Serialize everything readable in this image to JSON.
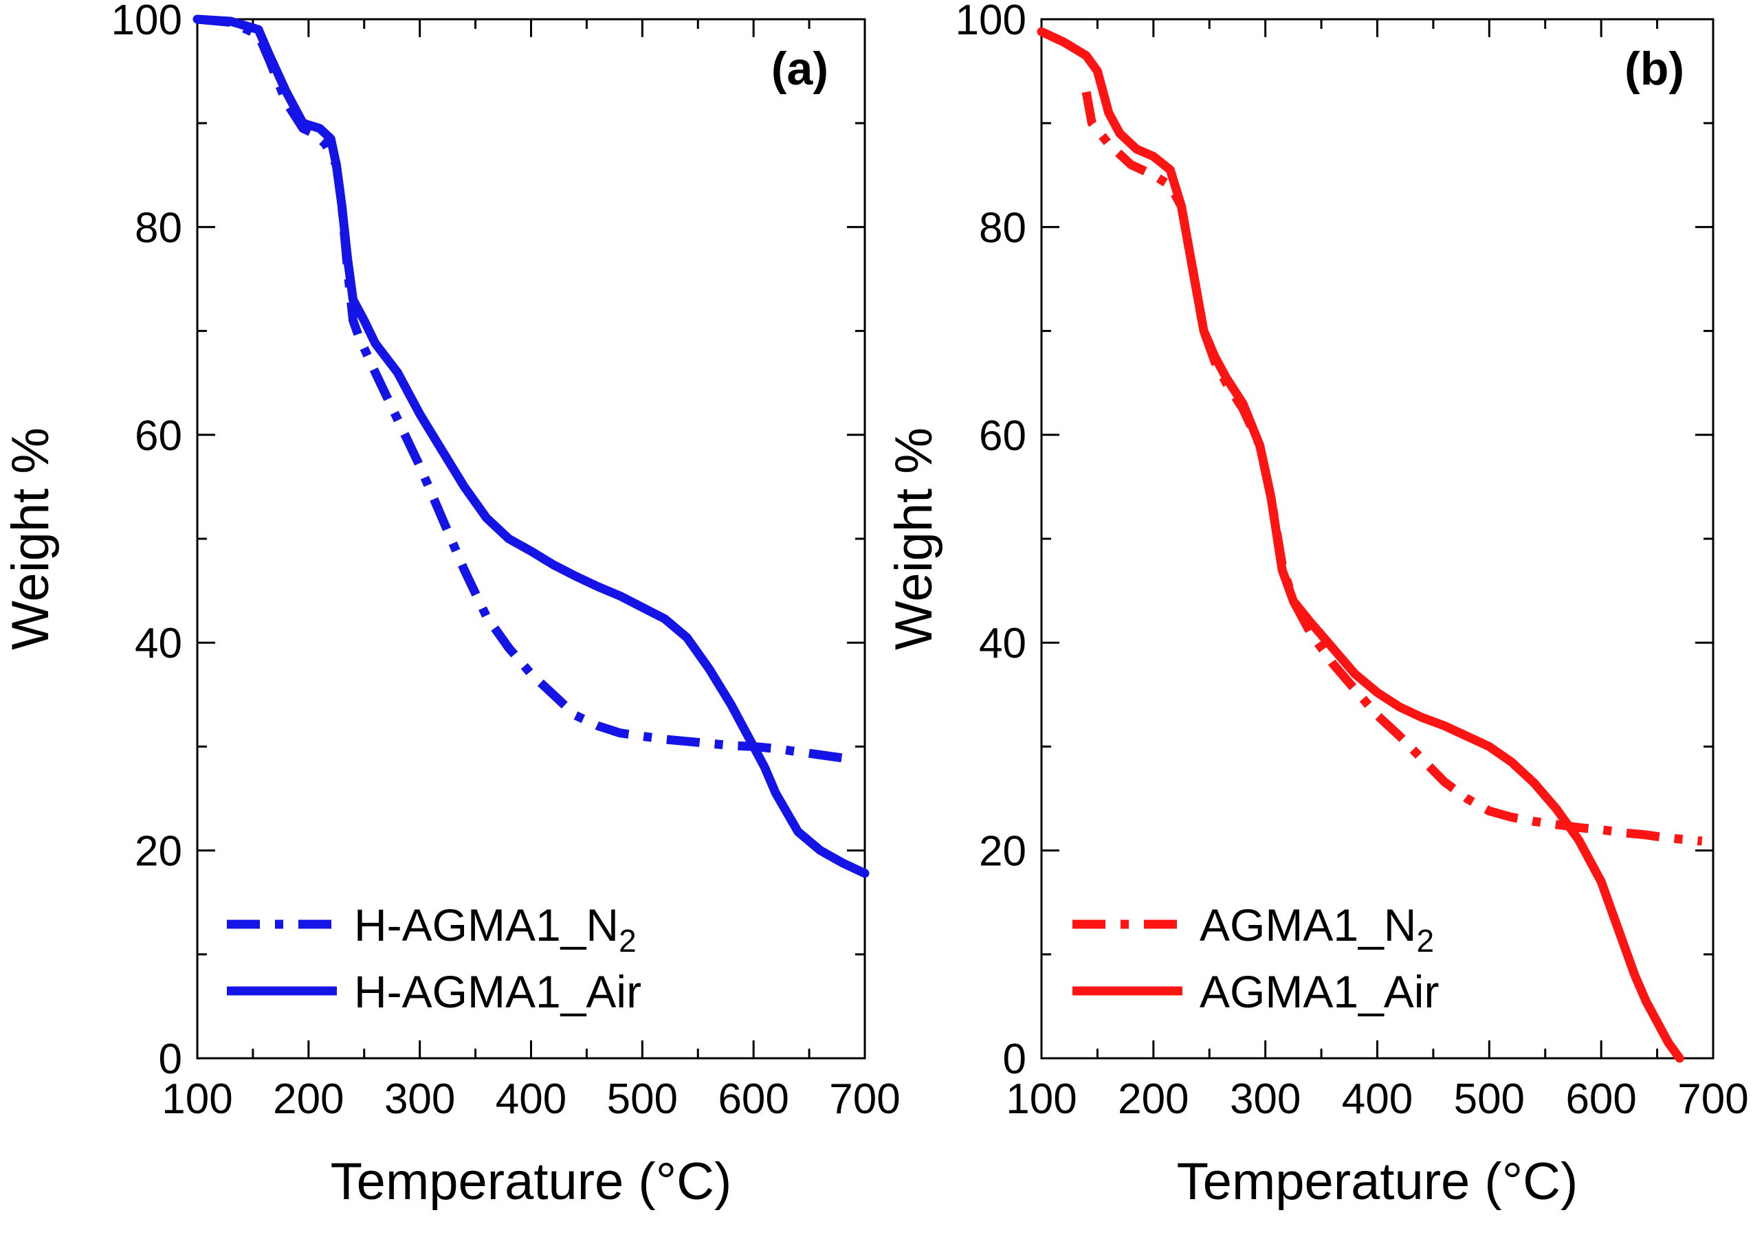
{
  "chart_data": [
    {
      "type": "line",
      "panel_label": "(a)",
      "xlabel": "Temperature (°C)",
      "ylabel": "Weight %",
      "xlim": [
        100,
        700
      ],
      "ylim": [
        0,
        100
      ],
      "xticks": [
        "100",
        "200",
        "300",
        "400",
        "500",
        "600",
        "700"
      ],
      "yticks": [
        "0",
        "20",
        "40",
        "60",
        "80",
        "100"
      ],
      "color": "#1414e6",
      "legend": {
        "location": "bottom-left"
      },
      "series": [
        {
          "name": "H-AGMA1_N",
          "subscript": "2",
          "style": "dashdot",
          "x": [
            100,
            130,
            155,
            165,
            180,
            195,
            205,
            215,
            225,
            230,
            235,
            240,
            245,
            260,
            280,
            300,
            320,
            340,
            360,
            380,
            400,
            420,
            440,
            460,
            480,
            500,
            520,
            540,
            560,
            580,
            600,
            620,
            640,
            660,
            680,
            690
          ],
          "y": [
            100,
            99.7,
            98.5,
            96,
            92,
            89.5,
            89,
            88,
            86,
            82,
            76,
            71,
            69.5,
            66,
            61.5,
            57,
            52,
            47,
            42.5,
            39.5,
            37,
            35,
            33,
            32,
            31.3,
            31,
            30.7,
            30.5,
            30.3,
            30.1,
            30,
            29.8,
            29.5,
            29.2,
            28.9,
            28.8
          ]
        },
        {
          "name": "H-AGMA1_Air",
          "style": "solid",
          "x": [
            100,
            130,
            155,
            165,
            180,
            195,
            210,
            220,
            225,
            230,
            235,
            240,
            250,
            260,
            280,
            300,
            320,
            340,
            360,
            380,
            400,
            420,
            440,
            460,
            480,
            500,
            520,
            540,
            560,
            580,
            600,
            610,
            620,
            640,
            660,
            680,
            700
          ],
          "y": [
            100,
            99.8,
            99,
            96.5,
            93,
            90,
            89.5,
            88.5,
            86,
            82,
            77,
            73,
            71,
            68.8,
            66,
            62,
            58.5,
            55,
            52,
            50,
            48.8,
            47.5,
            46.4,
            45.4,
            44.5,
            43.4,
            42.3,
            40.5,
            37.5,
            34,
            30,
            28,
            25.5,
            21.8,
            20,
            18.8,
            17.8
          ]
        }
      ]
    },
    {
      "type": "line",
      "panel_label": "(b)",
      "xlabel": "Temperature (°C)",
      "ylabel": "Weight %",
      "xlim": [
        100,
        700
      ],
      "ylim": [
        0,
        100
      ],
      "xticks": [
        "100",
        "200",
        "300",
        "400",
        "500",
        "600",
        "700"
      ],
      "yticks": [
        "0",
        "20",
        "40",
        "60",
        "80",
        "100"
      ],
      "color": "#ff1414",
      "legend": {
        "location": "bottom-left"
      },
      "series": [
        {
          "name": "AGMA1_N",
          "subscript": "2",
          "style": "dashdot",
          "x": [
            140,
            145,
            160,
            180,
            200,
            215,
            225,
            235,
            245,
            255,
            265,
            280,
            295,
            305,
            315,
            325,
            340,
            360,
            380,
            400,
            420,
            440,
            460,
            480,
            500,
            520,
            540,
            560,
            580,
            600,
            620,
            640,
            660,
            680,
            690
          ],
          "y": [
            93,
            90,
            88,
            86,
            85,
            84,
            82,
            76,
            70,
            67,
            65,
            62.5,
            59,
            54,
            47.5,
            44,
            41,
            38,
            35.5,
            33,
            31,
            28.8,
            26.6,
            25,
            23.8,
            23.2,
            22.8,
            22.5,
            22.2,
            22,
            21.7,
            21.5,
            21.2,
            21,
            20.9
          ]
        },
        {
          "name": "AGMA1_Air",
          "style": "solid",
          "x": [
            100,
            120,
            140,
            150,
            155,
            160,
            170,
            185,
            200,
            215,
            225,
            235,
            245,
            255,
            265,
            280,
            295,
            305,
            315,
            325,
            340,
            360,
            380,
            400,
            420,
            440,
            460,
            480,
            500,
            520,
            540,
            560,
            580,
            600,
            610,
            620,
            630,
            640,
            650,
            660,
            670
          ],
          "y": [
            98.8,
            97.8,
            96.5,
            95,
            93,
            91,
            89,
            87.5,
            86.8,
            85.5,
            82,
            76,
            70,
            67.5,
            65.5,
            63,
            59,
            54,
            47,
            44,
            42,
            39.5,
            37,
            35.2,
            33.8,
            32.8,
            32,
            31,
            30,
            28.5,
            26.5,
            24,
            21,
            17,
            14,
            11,
            8,
            5.5,
            3.5,
            1.5,
            0
          ]
        }
      ]
    }
  ]
}
